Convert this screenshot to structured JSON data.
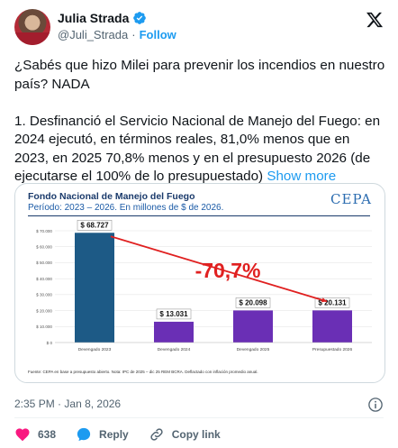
{
  "author": {
    "name": "Julia Strada",
    "handle": "@Juli_Strada",
    "separator": "·",
    "follow_label": "Follow"
  },
  "tweet": {
    "line1": "¿Sabés que hizo Milei para prevenir los incendios en nuestro país? NADA",
    "line2": "1. Desfinanció el Servicio Nacional de Manejo del Fuego: en 2024 ejecutó, en términos reales, 81,0% menos que en 2023, en 2025 70,8% menos y en el presupuesto 2026 (de ejecutarse el 100% de lo presupuestado)",
    "show_more": "Show more"
  },
  "media": {
    "logo_text": "CEPA",
    "source_note": "Fuente: CEPA en base a presupuesto abierto. Nota: IPC de 2025 – dic 25 REM BCRA. Deflactado con inflación promedio anual."
  },
  "chart_data": {
    "type": "bar",
    "title": "Fondo Nacional de Manejo del Fuego",
    "subtitle": "Período: 2023 – 2026. En millones de $ de 2026.",
    "categories": [
      "Devengado 2023",
      "Devengado 2024",
      "Devengado 2025",
      "Presupuestado 2026"
    ],
    "values": [
      68727,
      13031,
      20098,
      20131
    ],
    "data_labels": [
      "$ 68.727",
      "$ 13.031",
      "$ 20.098",
      "$ 20.131"
    ],
    "y_ticks": [
      0,
      10000,
      20000,
      30000,
      40000,
      50000,
      60000,
      70000
    ],
    "y_tick_labels": [
      "$ 0",
      "$ 10.000",
      "$ 20.000",
      "$ 30.000",
      "$ 40.000",
      "$ 50.000",
      "$ 60.000",
      "$ 70.000"
    ],
    "ylim": [
      0,
      70000
    ],
    "annotation": "-70,7%",
    "grid": true,
    "colors": {
      "first_bar": "#1d5a86",
      "other_bars": "#6a2fb5",
      "annotation": "#e02020",
      "grid": "#e6e6e6"
    }
  },
  "footer": {
    "time": "2:35 PM",
    "separator": "·",
    "date": "Jan 8, 2026",
    "likes_count": "638",
    "reply_label": "Reply",
    "copy_link_label": "Copy link"
  },
  "icons": [
    "verified-badge-icon",
    "x-logo-icon",
    "info-icon",
    "heart-icon",
    "reply-icon",
    "link-icon"
  ],
  "colors": {
    "accent": "#1d9bf0",
    "like": "#f91880",
    "muted": "#536471"
  }
}
